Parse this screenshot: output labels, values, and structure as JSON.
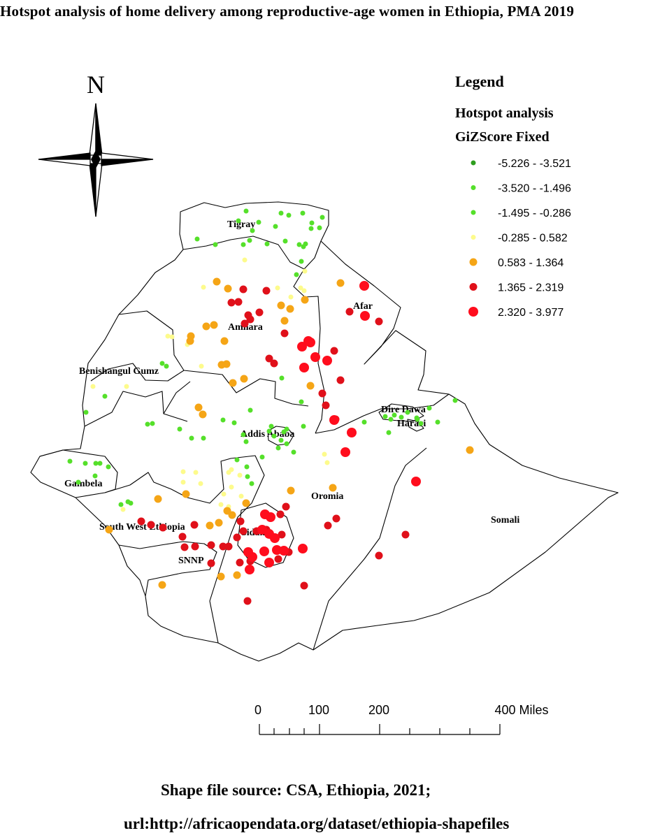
{
  "title": "Hotspot analysis of home delivery among reproductive-age women in Ethiopia, PMA 2019",
  "north_label": "N",
  "legend": {
    "heading": "Legend",
    "layer_name": "Hotspot analysis",
    "field_name": "GiZScore Fixed",
    "classes": [
      {
        "range": "-5.226 - -3.521",
        "color": "#2e9e1e",
        "size": "small"
      },
      {
        "range": "-3.520 - -1.496",
        "color": "#55e02a",
        "size": "small"
      },
      {
        "range": "-1.495 - -0.286",
        "color": "#55e02a",
        "size": "small"
      },
      {
        "range": "-0.285 - 0.582",
        "color": "#fdfb8c",
        "size": "small"
      },
      {
        "range": "0.583 - 1.364",
        "color": "#f5a516",
        "size": "medium"
      },
      {
        "range": "1.365 - 2.319",
        "color": "#e0101a",
        "size": "medium"
      },
      {
        "range": "2.320 - 3.977",
        "color": "#ff0d1d",
        "size": "large"
      }
    ]
  },
  "regions": [
    "Tigray",
    "Afar",
    "Amhara",
    "Benishangul Gumz",
    "Dire Dawa",
    "Harari",
    "Addis Ababa",
    "Gambela",
    "Oromia",
    "South West Ethiopia",
    "Sidama",
    "Somali",
    "SNNP"
  ],
  "scale_bar": {
    "labels": [
      "0",
      "100",
      "200",
      "400 Miles"
    ]
  },
  "source": {
    "line1": "Shape file source: CSA, Ethiopia, 2021;",
    "line2": "url:http://africaopendata.org/dataset/ethiopia-shapefiles"
  }
}
